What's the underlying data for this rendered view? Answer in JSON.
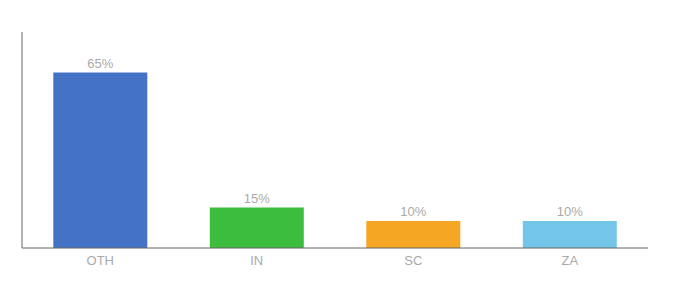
{
  "chart_data": {
    "type": "bar",
    "categories": [
      "OTH",
      "IN",
      "SC",
      "ZA"
    ],
    "values": [
      65,
      15,
      10,
      10
    ],
    "value_labels": [
      "65%",
      "15%",
      "10%",
      "10%"
    ],
    "data_labels": true,
    "colors": [
      "#4472C4",
      "#3DBD3D",
      "#F5A623",
      "#74C6E8"
    ],
    "ylim": [
      0,
      80
    ],
    "tick_labels": "x",
    "grid": false
  }
}
